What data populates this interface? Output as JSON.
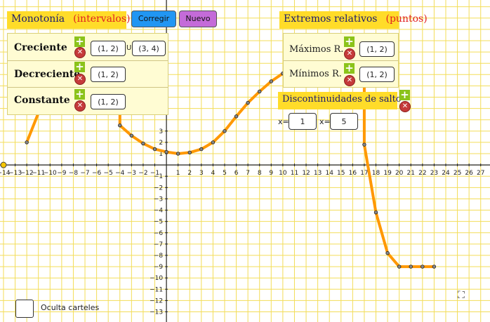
{
  "monotonia": {
    "title": "Monotonía",
    "subtitle": "(intervalos)",
    "rows": [
      {
        "label": "Creciente",
        "values": [
          "(1, 2)",
          "(3, 4)"
        ],
        "joiner": "U"
      },
      {
        "label": "Decreciente",
        "values": [
          "(1, 2)"
        ]
      },
      {
        "label": "Constante",
        "values": [
          "(1, 2)"
        ]
      }
    ]
  },
  "buttons": {
    "check": "Corregir",
    "new": "Nuevo"
  },
  "extremos": {
    "title": "Extremos relativos",
    "subtitle": "(puntos)",
    "rows": [
      {
        "label": "Máximos R.",
        "value": "(1, 2)"
      },
      {
        "label": "Mínimos R.",
        "value": "(1, 2)"
      }
    ]
  },
  "discontinuidades": {
    "title": "Discontinuidades de salto",
    "prefix": "x=",
    "values": [
      "1",
      "5"
    ]
  },
  "hide_labels": "Oculta carteles",
  "icons": {
    "add": "plus-icon",
    "remove": "cross-icon",
    "fullscreen": "fullscreen-icon"
  },
  "colors": {
    "curve": "#ff9800",
    "grid": "#f3dd58",
    "title_bg": "#ffdc29",
    "check_btn": "#2196f3",
    "new_btn": "#c46bd9"
  },
  "chart_data": {
    "type": "line",
    "x_ticks": [
      -14,
      -13,
      -12,
      -11,
      -10,
      -9,
      -8,
      -7,
      -6,
      -5,
      -4,
      -3,
      -2,
      -1,
      1,
      2,
      3,
      4,
      5,
      6,
      7,
      8,
      9,
      10,
      11,
      12,
      13,
      14,
      15,
      16,
      17,
      18,
      19,
      20,
      21,
      22,
      23,
      24,
      25,
      26,
      27
    ],
    "y_ticks": [
      3,
      2,
      1,
      -1,
      -2,
      -3,
      -4,
      -5,
      -6,
      -7,
      -8,
      -9,
      -10,
      -11,
      -12,
      -13
    ],
    "xlim": [
      -14.3,
      27.8
    ],
    "ylim": [
      -13.9,
      14.6
    ],
    "grid": true,
    "special_point": [
      -14,
      0
    ],
    "series": [
      {
        "points": [
          [
            -12,
            2
          ],
          [
            -11,
            4.6
          ],
          [
            -10,
            6.2
          ],
          [
            -9,
            6.8
          ],
          [
            -8,
            6.4
          ],
          [
            -7,
            5.5
          ]
        ]
      },
      {
        "points": [
          [
            -4,
            3.5
          ],
          [
            -3,
            2.6
          ],
          [
            -2,
            1.9
          ],
          [
            -1,
            1.4
          ],
          [
            0,
            1.15
          ],
          [
            1,
            1
          ],
          [
            2,
            1.1
          ],
          [
            3,
            1.4
          ],
          [
            4,
            2
          ],
          [
            5,
            3
          ],
          [
            6,
            4.3
          ],
          [
            7,
            5.5
          ],
          [
            8,
            6.5
          ],
          [
            9,
            7.4
          ],
          [
            10,
            8.1
          ],
          [
            11,
            8.7
          ],
          [
            12,
            9.1
          ],
          [
            13,
            9.4
          ],
          [
            14,
            9.5
          ],
          [
            15,
            9.5
          ],
          [
            16,
            9.2
          ]
        ]
      },
      {
        "points": [
          [
            17,
            1.8
          ],
          [
            18,
            -4.2
          ],
          [
            19,
            -7.8
          ],
          [
            20,
            -9
          ],
          [
            21,
            -9
          ],
          [
            22,
            -9
          ],
          [
            23,
            -9
          ]
        ]
      }
    ],
    "segment_edges": [
      [
        -7,
        5.5
      ],
      [
        -4,
        5
      ],
      [
        16,
        9.2
      ],
      [
        17,
        7.8
      ]
    ]
  }
}
